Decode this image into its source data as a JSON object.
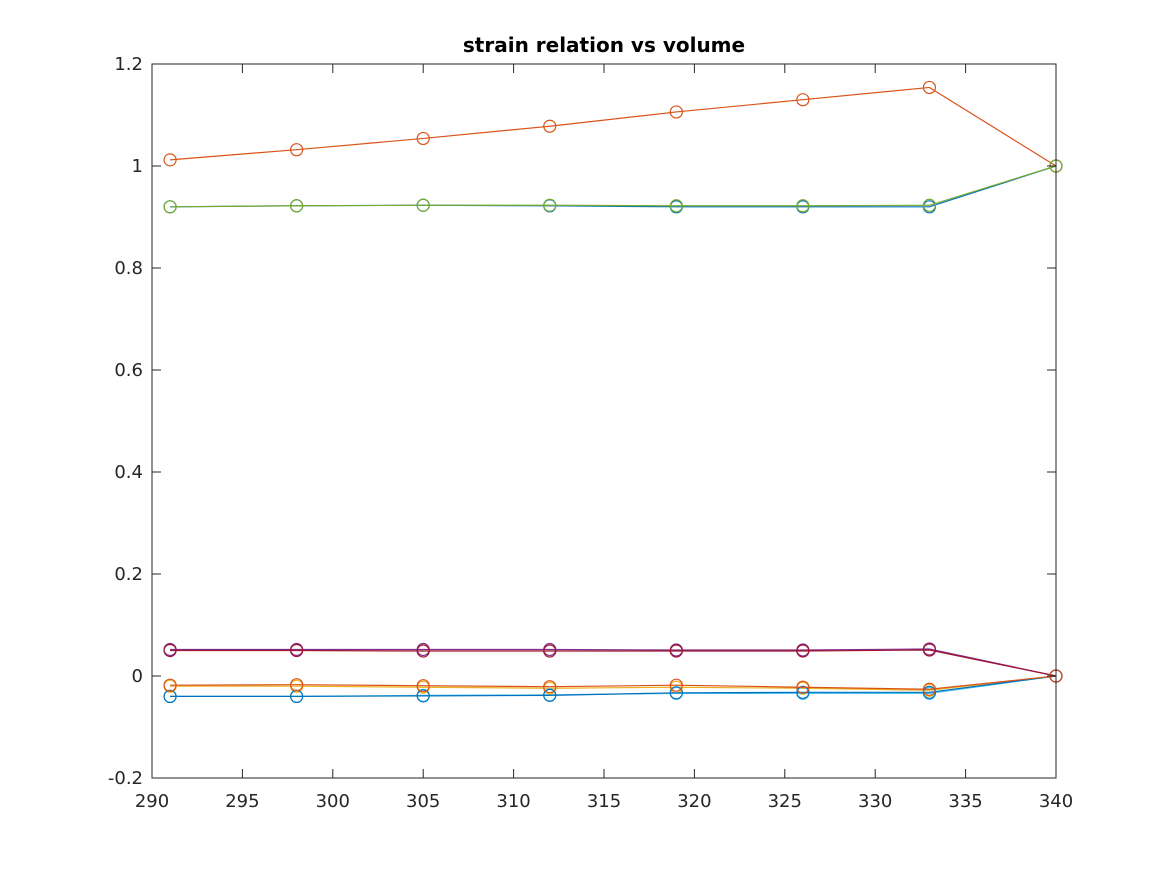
{
  "chart_data": {
    "type": "line",
    "title": "strain relation vs volume",
    "xlabel": "",
    "ylabel": "",
    "xlim": [
      290,
      340
    ],
    "ylim": [
      -0.2,
      1.2
    ],
    "x_ticks": [
      290,
      295,
      300,
      305,
      310,
      315,
      320,
      325,
      330,
      335,
      340
    ],
    "y_ticks": [
      -0.2,
      0,
      0.2,
      0.4,
      0.6,
      0.8,
      1,
      1.2
    ],
    "x_tick_labels": [
      "290",
      "295",
      "300",
      "305",
      "310",
      "315",
      "320",
      "325",
      "330",
      "335",
      "340"
    ],
    "y_tick_labels": [
      "-0.2",
      "0",
      "0.2",
      "0.4",
      "0.6",
      "0.8",
      "1",
      "1.2"
    ],
    "grid": false,
    "legend": "none",
    "marker": "circle",
    "x": [
      291,
      298,
      305,
      312,
      319,
      326,
      333,
      340
    ],
    "series": [
      {
        "color": "#0072BD",
        "values": [
          0.92,
          0.922,
          0.923,
          0.922,
          0.92,
          0.92,
          0.92,
          1.0
        ]
      },
      {
        "color": "#D95319",
        "values": [
          1.012,
          1.032,
          1.054,
          1.078,
          1.106,
          1.13,
          1.154,
          1.0
        ]
      },
      {
        "color": "#EDB120",
        "values": [
          -0.02,
          -0.02,
          -0.022,
          -0.024,
          -0.022,
          -0.024,
          -0.028,
          0.0
        ]
      },
      {
        "color": "#7E2F8E",
        "values": [
          0.052,
          0.052,
          0.052,
          0.052,
          0.051,
          0.051,
          0.053,
          0.0
        ]
      },
      {
        "color": "#77AC30",
        "values": [
          0.92,
          0.922,
          0.923,
          0.923,
          0.922,
          0.922,
          0.923,
          1.0
        ]
      },
      {
        "color": "#4DBEEE",
        "values": [
          -0.04,
          -0.04,
          -0.038,
          -0.037,
          -0.034,
          -0.034,
          -0.034,
          0.0
        ]
      },
      {
        "color": "#A2142F",
        "values": [
          0.05,
          0.05,
          0.049,
          0.049,
          0.049,
          0.049,
          0.051,
          0.0
        ]
      },
      {
        "color": "#0072BD",
        "values": [
          -0.04,
          -0.04,
          -0.039,
          -0.038,
          -0.033,
          -0.032,
          -0.032,
          0.0
        ]
      },
      {
        "color": "#D95319",
        "values": [
          -0.018,
          -0.017,
          -0.019,
          -0.021,
          -0.018,
          -0.022,
          -0.026,
          0.0
        ]
      }
    ]
  }
}
